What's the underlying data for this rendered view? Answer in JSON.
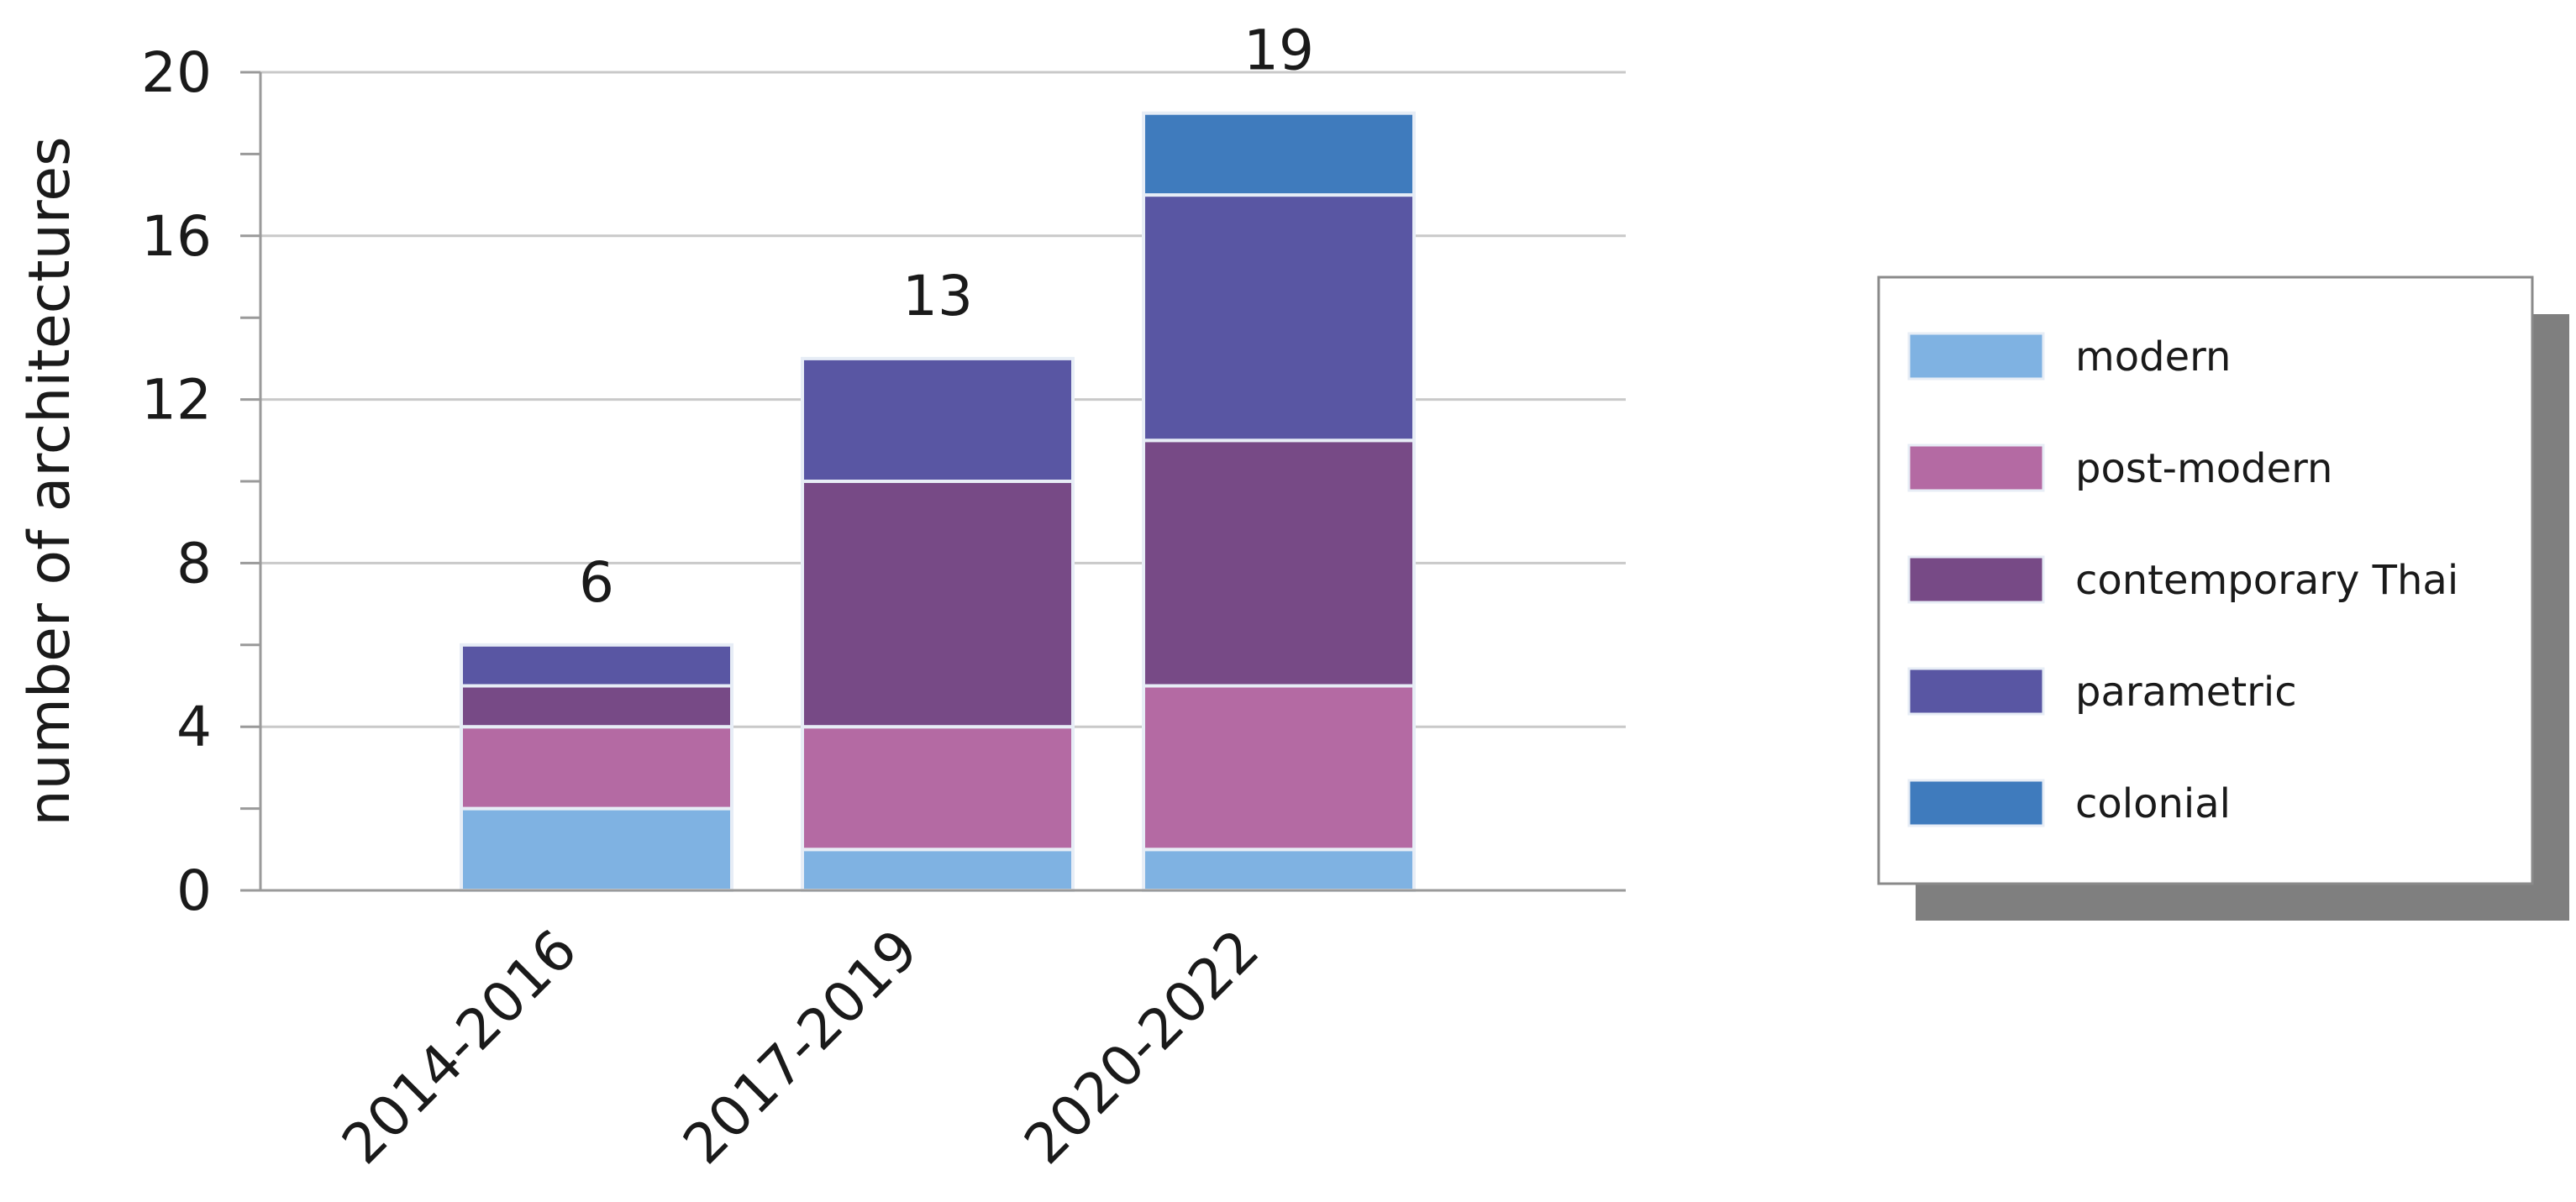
{
  "chart_data": {
    "type": "bar",
    "stacked": true,
    "categories": [
      "2014-2016",
      "2017-2019",
      "2020-2022"
    ],
    "series": [
      {
        "name": "modern",
        "values": [
          2,
          1,
          1
        ],
        "color": "#7fb2e2"
      },
      {
        "name": "post-modern",
        "values": [
          2,
          3,
          4
        ],
        "color": "#b46aa3"
      },
      {
        "name": "contemporary Thai",
        "values": [
          1,
          6,
          6
        ],
        "color": "#774a86"
      },
      {
        "name": "parametric",
        "values": [
          1,
          3,
          6
        ],
        "color": "#5956a3"
      },
      {
        "name": "colonial",
        "values": [
          0,
          0,
          2
        ],
        "color": "#3f7bbd"
      }
    ],
    "totals": [
      "6",
      "13",
      "19"
    ],
    "title": "",
    "xlabel": "",
    "ylabel": "number of architectures",
    "ylim": [
      0,
      20
    ],
    "y_ticks": [
      "0",
      "4",
      "8",
      "12",
      "16",
      "20"
    ],
    "y_tick_values": [
      0,
      4,
      8,
      12,
      16,
      20
    ],
    "y_minor_tick_values": [
      2,
      6,
      10,
      14,
      18
    ],
    "x_tick_rotation_deg": -45,
    "grid": true,
    "legend_position": "right"
  }
}
